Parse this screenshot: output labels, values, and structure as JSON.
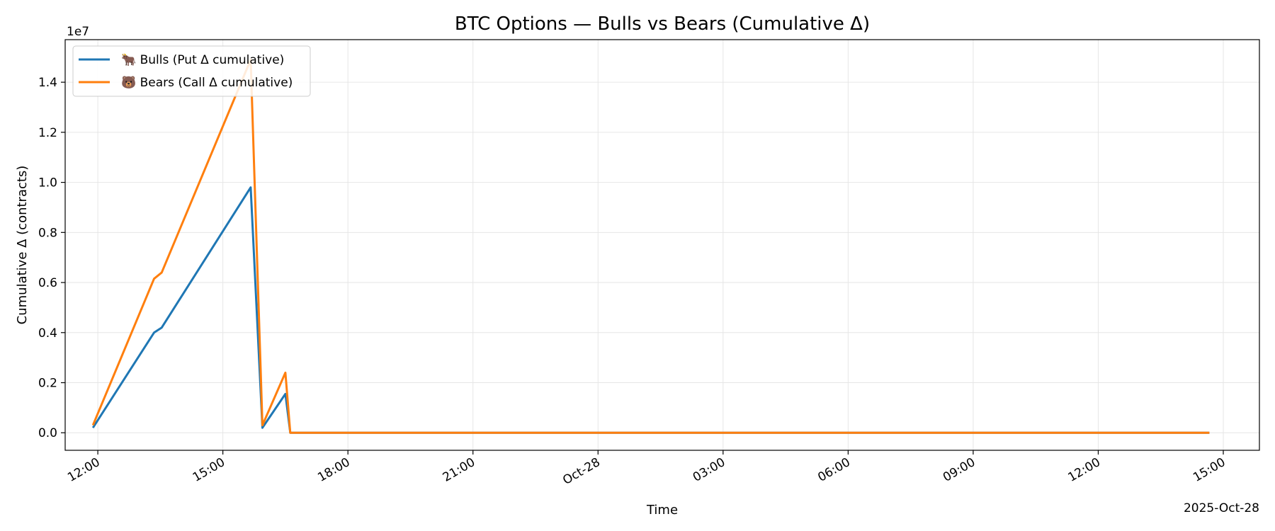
{
  "chart_data": {
    "type": "line",
    "title": "BTC Options — Bulls vs Bears (Cumulative Δ)",
    "xlabel": "Time",
    "ylabel": "Cumulative Δ (contracts)",
    "y_offset_label": "1e7",
    "x_offset_label": "2025-Oct-28",
    "x_ticks": [
      {
        "t": "2025-10-27T12:00",
        "label": "12:00"
      },
      {
        "t": "2025-10-27T15:00",
        "label": "15:00"
      },
      {
        "t": "2025-10-27T18:00",
        "label": "18:00"
      },
      {
        "t": "2025-10-27T21:00",
        "label": "21:00"
      },
      {
        "t": "2025-10-28T00:00",
        "label": "Oct-28"
      },
      {
        "t": "2025-10-28T03:00",
        "label": "03:00"
      },
      {
        "t": "2025-10-28T06:00",
        "label": "06:00"
      },
      {
        "t": "2025-10-28T09:00",
        "label": "09:00"
      },
      {
        "t": "2025-10-28T12:00",
        "label": "12:00"
      },
      {
        "t": "2025-10-28T15:00",
        "label": "15:00"
      }
    ],
    "y_ticks": [
      {
        "v": 0,
        "label": "0.0"
      },
      {
        "v": 0.2,
        "label": "0.2"
      },
      {
        "v": 0.4,
        "label": "0.4"
      },
      {
        "v": 0.6,
        "label": "0.6"
      },
      {
        "v": 0.8,
        "label": "0.8"
      },
      {
        "v": 1.0,
        "label": "1.0"
      },
      {
        "v": 1.2,
        "label": "1.2"
      },
      {
        "v": 1.4,
        "label": "1.4"
      }
    ],
    "xlim": [
      "2025-10-27T11:13",
      "2025-10-28T15:52"
    ],
    "ylim": [
      -0.07,
      1.57
    ],
    "grid": true,
    "legend_position": "top-left",
    "series": [
      {
        "name": "🐂 Bulls (Put Δ cumulative)",
        "color": "#1f77b4",
        "points": [
          {
            "t": "2025-10-27T11:53",
            "v": 0.02
          },
          {
            "t": "2025-10-27T13:21",
            "v": 0.4
          },
          {
            "t": "2025-10-27T13:32",
            "v": 0.42
          },
          {
            "t": "2025-10-27T15:40",
            "v": 0.98
          },
          {
            "t": "2025-10-27T15:57",
            "v": 0.02
          },
          {
            "t": "2025-10-27T16:30",
            "v": 0.155
          },
          {
            "t": "2025-10-27T16:37",
            "v": 0.0
          },
          {
            "t": "2025-10-28T14:40",
            "v": 0.0
          }
        ]
      },
      {
        "name": "🐻 Bears (Call Δ cumulative)",
        "color": "#ff7f0e",
        "points": [
          {
            "t": "2025-10-27T11:53",
            "v": 0.03
          },
          {
            "t": "2025-10-27T13:21",
            "v": 0.615
          },
          {
            "t": "2025-10-27T13:32",
            "v": 0.64
          },
          {
            "t": "2025-10-27T15:40",
            "v": 1.49
          },
          {
            "t": "2025-10-27T15:57",
            "v": 0.03
          },
          {
            "t": "2025-10-27T16:30",
            "v": 0.24
          },
          {
            "t": "2025-10-27T16:37",
            "v": 0.0
          },
          {
            "t": "2025-10-28T14:40",
            "v": 0.0
          }
        ]
      }
    ]
  }
}
